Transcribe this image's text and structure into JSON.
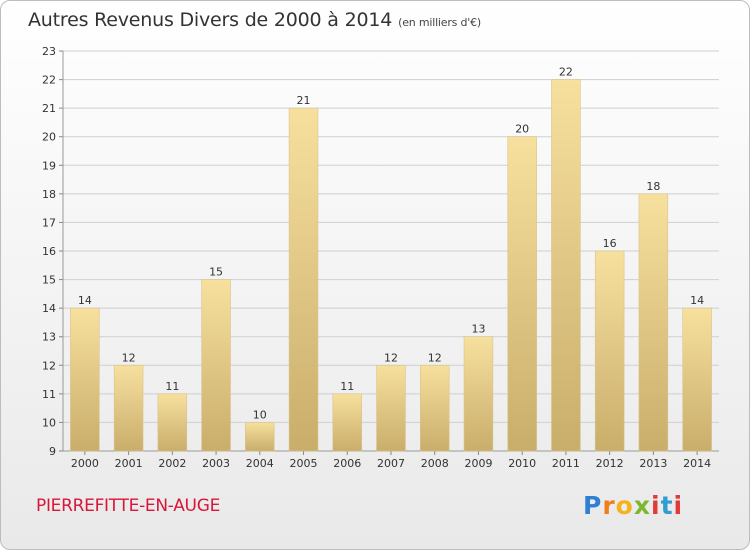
{
  "header": {
    "title": "Autres Revenus Divers de 2000 à 2014",
    "subtitle": "(en milliers d'€)"
  },
  "footer": {
    "commune": "PIERREFITTE-EN-AUGE",
    "logo": "Proxiti"
  },
  "colors": {
    "bar_light": "#f7e09e",
    "bar_dark": "#c9ad6b",
    "commune_text": "#d9163a"
  },
  "chart_data": {
    "type": "bar",
    "title": "Autres Revenus Divers de 2000 à 2014",
    "subtitle": "(en milliers d'€)",
    "xlabel": "",
    "ylabel": "",
    "categories": [
      "2000",
      "2001",
      "2002",
      "2003",
      "2004",
      "2005",
      "2006",
      "2007",
      "2008",
      "2009",
      "2010",
      "2011",
      "2012",
      "2013",
      "2014"
    ],
    "values": [
      14,
      12,
      11,
      15,
      10,
      21,
      11,
      12,
      12,
      13,
      20,
      22,
      16,
      18,
      14
    ],
    "ylim": [
      9,
      23
    ],
    "yticks": [
      9,
      10,
      11,
      12,
      13,
      14,
      15,
      16,
      17,
      18,
      19,
      20,
      21,
      22,
      23
    ],
    "grid": true,
    "legend": "none",
    "data_labels": true
  }
}
